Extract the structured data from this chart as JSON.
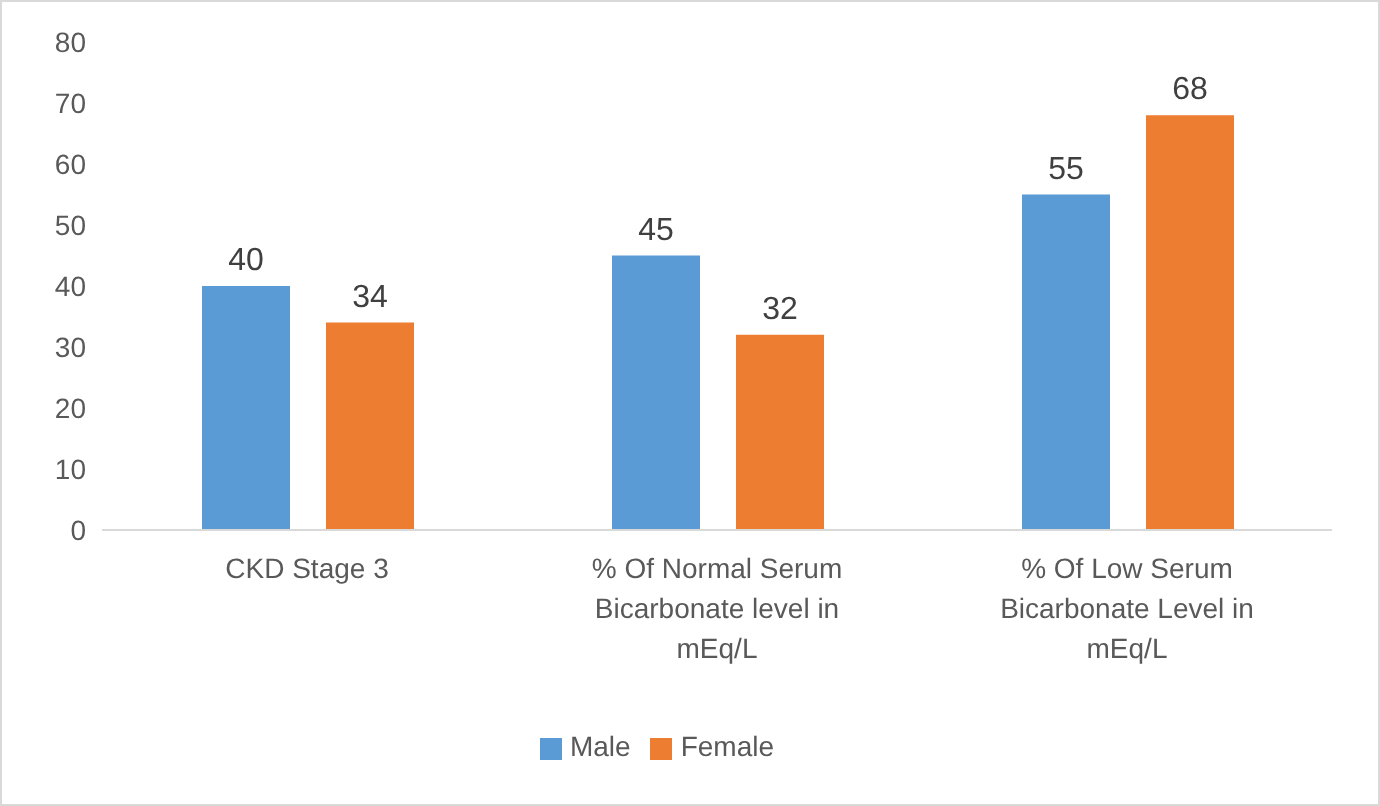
{
  "chart_data": {
    "type": "bar",
    "categories": [
      "CKD Stage 3",
      "% Of Normal Serum Bicarbonate level in mEq/L",
      "% Of Low Serum Bicarbonate Level in mEq/L"
    ],
    "series": [
      {
        "name": "Male",
        "color": "#5b9bd5",
        "values": [
          40,
          45,
          55
        ]
      },
      {
        "name": "Female",
        "color": "#ed7d31",
        "values": [
          34,
          32,
          68
        ]
      }
    ],
    "ylim": [
      0,
      80
    ],
    "yticks": [
      0,
      10,
      20,
      30,
      40,
      50,
      60,
      70,
      80
    ],
    "grid": false,
    "legend": "bottom",
    "data_labels": true
  }
}
